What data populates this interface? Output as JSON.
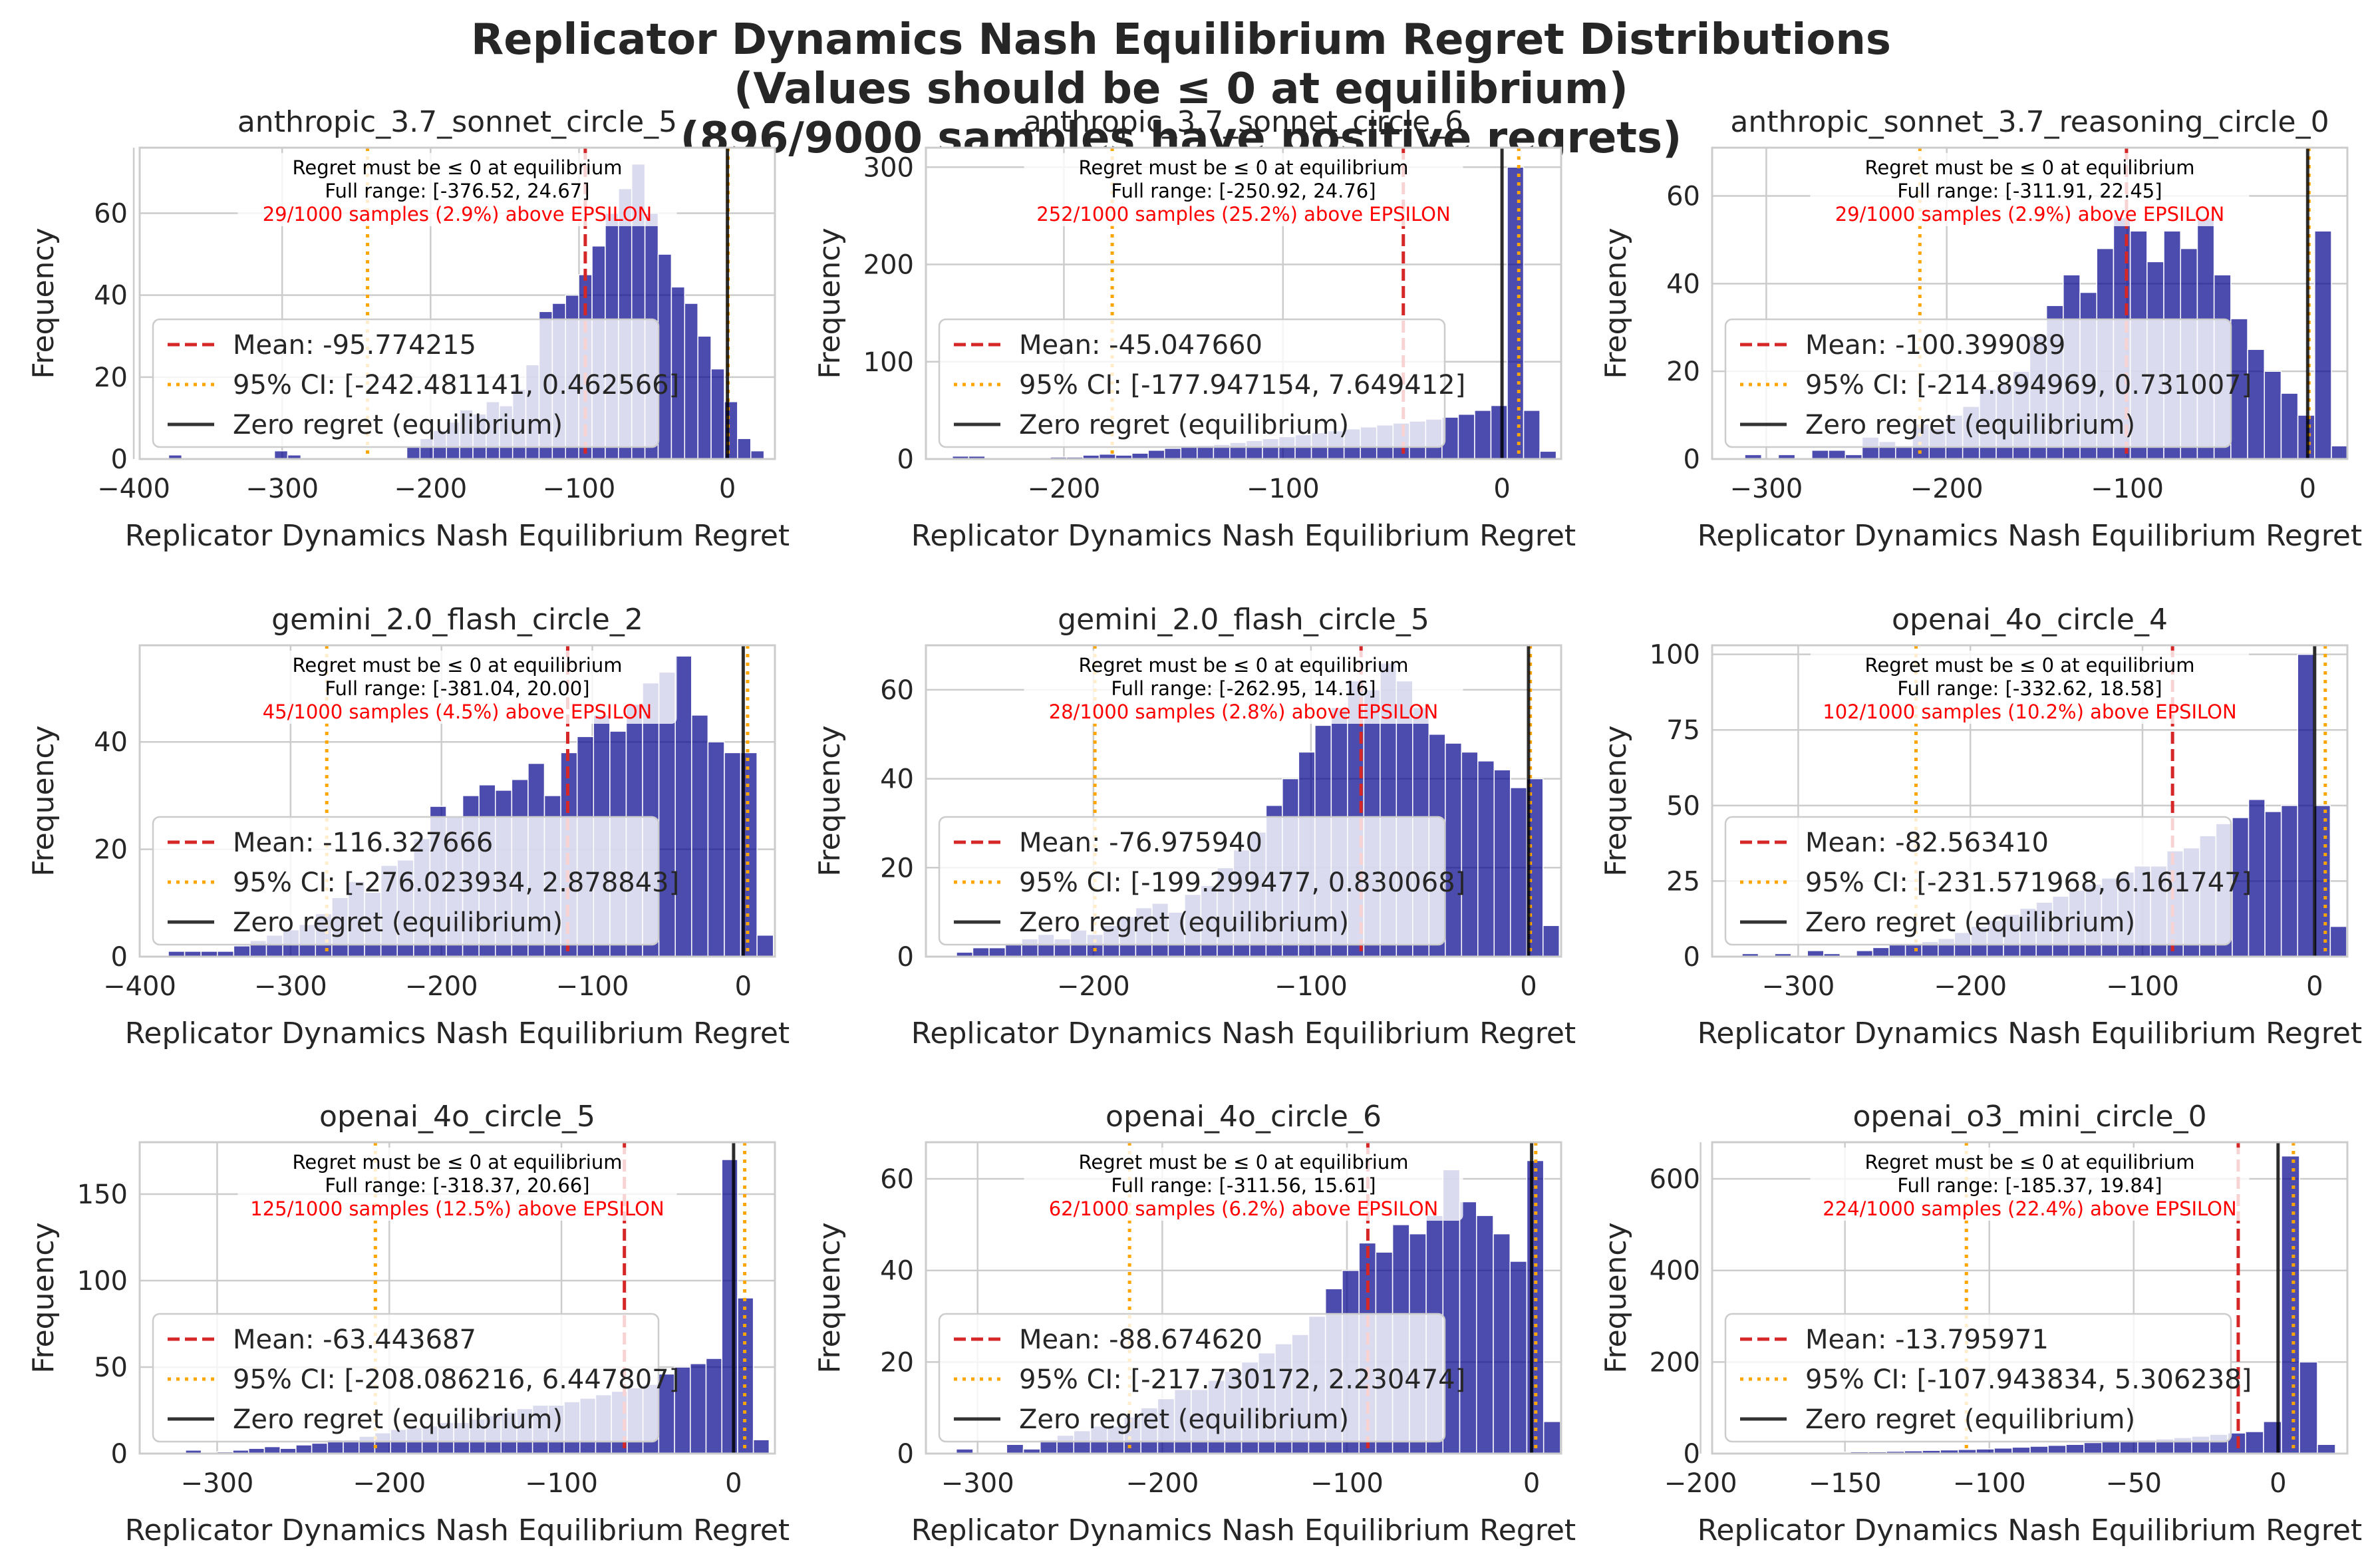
{
  "figure": {
    "title_lines": [
      "Replicator Dynamics Nash Equilibrium Regret Distributions",
      "(Values should be ≤ 0 at equilibrium)",
      "(896/9000 samples have positive regrets)"
    ]
  },
  "colors": {
    "bars": "#00008b",
    "mean_line": "#d62728",
    "ci_line": "#ffa500",
    "zero_line": "#000000",
    "epsilon_text": "#ff0000",
    "grid": "#cccccc"
  },
  "chart_data": [
    {
      "type": "bar",
      "title": "anthropic_3.7_sonnet_circle_5",
      "xlabel": "Replicator Dynamics Nash Equilibrium Regret",
      "ylabel": "Frequency",
      "xlim": [
        -396,
        32
      ],
      "ylim": [
        0,
        76
      ],
      "xticks": [
        -400,
        -300,
        -200,
        -100,
        0
      ],
      "yticks": [
        0,
        20,
        40,
        60
      ],
      "bin_range": [
        -376.52,
        24.67
      ],
      "counts": [
        1,
        0,
        0,
        0,
        0,
        0,
        0,
        0,
        2,
        1,
        0,
        0,
        0,
        0,
        0,
        0,
        0,
        0,
        3,
        5,
        7,
        9,
        12,
        11,
        14,
        13,
        17,
        23,
        36,
        38,
        40,
        45,
        52,
        60,
        66,
        72,
        60,
        50,
        42,
        38,
        30,
        22,
        14,
        5,
        2
      ],
      "mean": -95.774215,
      "ci": [
        -242.481141,
        0.462566
      ],
      "annotations": [
        "Regret must be ≤ 0 at equilibrium",
        "Full range: [-376.52, 24.67]",
        "29/1000 samples (2.9%) above EPSILON"
      ],
      "legend": [
        "Mean: -95.774215",
        "95% CI: [-242.481141, 0.462566]",
        "Zero regret (equilibrium)"
      ]
    },
    {
      "type": "bar",
      "title": "anthropic_3.7_sonnet_circle_6",
      "xlabel": "Replicator Dynamics Nash Equilibrium Regret",
      "ylabel": "Frequency",
      "xlim": [
        -263,
        27
      ],
      "ylim": [
        0,
        320
      ],
      "xticks": [
        -200,
        -100,
        0
      ],
      "yticks": [
        0,
        100,
        200,
        300
      ],
      "bin_range": [
        -250.92,
        24.76
      ],
      "counts": [
        3,
        3,
        0,
        0,
        1,
        0,
        2,
        2,
        4,
        5,
        4,
        6,
        9,
        11,
        13,
        14,
        15,
        17,
        19,
        21,
        23,
        25,
        27,
        29,
        31,
        33,
        35,
        37,
        39,
        41,
        43,
        46,
        50,
        55,
        300,
        50,
        8
      ],
      "mean": -45.04766,
      "ci": [
        -177.947154,
        7.649412
      ],
      "annotations": [
        "Regret must be ≤ 0 at equilibrium",
        "Full range: [-250.92, 24.76]",
        "252/1000 samples (25.2%) above EPSILON"
      ],
      "legend": [
        "Mean: -45.047660",
        "95% CI: [-177.947154, 7.649412]",
        "Zero regret (equilibrium)"
      ]
    },
    {
      "type": "bar",
      "title": "anthropic_sonnet_3.7_reasoning_circle_0",
      "xlabel": "Replicator Dynamics Nash Equilibrium Regret",
      "ylabel": "Frequency",
      "xlim": [
        -330,
        22
      ],
      "ylim": [
        0,
        71
      ],
      "xticks": [
        -300,
        -200,
        -100,
        0
      ],
      "yticks": [
        0,
        20,
        40,
        60
      ],
      "bin_range": [
        -311.91,
        22.45
      ],
      "counts": [
        1,
        0,
        1,
        0,
        2,
        2,
        1,
        5,
        4,
        3,
        8,
        7,
        10,
        12,
        16,
        17,
        20,
        28,
        35,
        42,
        38,
        48,
        55,
        52,
        45,
        52,
        48,
        55,
        42,
        32,
        25,
        20,
        15,
        10,
        52,
        3
      ],
      "mean": -100.399089,
      "ci": [
        -214.894969,
        0.731007
      ],
      "annotations": [
        "Regret must be ≤ 0 at equilibrium",
        "Full range: [-311.91, 22.45]",
        "29/1000 samples (2.9%) above EPSILON"
      ],
      "legend": [
        "Mean: -100.399089",
        "95% CI: [-214.894969, 0.731007]",
        "Zero regret (equilibrium)"
      ]
    },
    {
      "type": "bar",
      "title": "gemini_2.0_flash_circle_2",
      "xlabel": "Replicator Dynamics Nash Equilibrium Regret",
      "ylabel": "Frequency",
      "xlim": [
        -400,
        21
      ],
      "ylim": [
        0,
        58
      ],
      "xticks": [
        -400,
        -300,
        -200,
        -100,
        0
      ],
      "yticks": [
        0,
        20,
        40
      ],
      "bin_range": [
        -381.04,
        20.0
      ],
      "counts": [
        1,
        1,
        1,
        1,
        2,
        3,
        4,
        5,
        6,
        8,
        11,
        14,
        12,
        17,
        18,
        22,
        28,
        26,
        30,
        32,
        31,
        33,
        36,
        30,
        38,
        41,
        45,
        42,
        47,
        51,
        53,
        56,
        45,
        40,
        38,
        38,
        4
      ],
      "mean": -116.327666,
      "ci": [
        -276.023934,
        2.878843
      ],
      "annotations": [
        "Regret must be ≤ 0 at equilibrium",
        "Full range: [-381.04, 20.00]",
        "45/1000 samples (4.5%) above EPSILON"
      ],
      "legend": [
        "Mean: -116.327666",
        "95% CI: [-276.023934, 2.878843]",
        "Zero regret (equilibrium)"
      ]
    },
    {
      "type": "bar",
      "title": "gemini_2.0_flash_circle_5",
      "xlabel": "Replicator Dynamics Nash Equilibrium Regret",
      "ylabel": "Frequency",
      "xlim": [
        -277,
        15
      ],
      "ylim": [
        0,
        70
      ],
      "xticks": [
        -200,
        -100,
        0
      ],
      "yticks": [
        0,
        20,
        40,
        60
      ],
      "bin_range": [
        -262.95,
        14.16
      ],
      "counts": [
        1,
        2,
        2,
        3,
        4,
        5,
        4,
        6,
        5,
        7,
        9,
        11,
        12,
        10,
        14,
        16,
        20,
        24,
        28,
        34,
        40,
        46,
        52,
        56,
        62,
        60,
        66,
        62,
        56,
        50,
        48,
        46,
        44,
        42,
        38,
        40,
        7
      ],
      "mean": -76.97594,
      "ci": [
        -199.299477,
        0.830068
      ],
      "annotations": [
        "Regret must be ≤ 0 at equilibrium",
        "Full range: [-262.95, 14.16]",
        "28/1000 samples (2.8%) above EPSILON"
      ],
      "legend": [
        "Mean: -76.975940",
        "95% CI: [-199.299477, 0.830068]",
        "Zero regret (equilibrium)"
      ]
    },
    {
      "type": "bar",
      "title": "openai_4o_circle_4",
      "xlabel": "Replicator Dynamics Nash Equilibrium Regret",
      "ylabel": "Frequency",
      "xlim": [
        -350,
        19
      ],
      "ylim": [
        0,
        103
      ],
      "xticks": [
        -300,
        -200,
        -100,
        0
      ],
      "yticks": [
        0,
        25,
        50,
        75,
        100
      ],
      "bin_range": [
        -332.62,
        18.58
      ],
      "counts": [
        1,
        0,
        1,
        0,
        2,
        1,
        0,
        2,
        3,
        4,
        4,
        5,
        6,
        8,
        10,
        12,
        14,
        16,
        18,
        20,
        22,
        24,
        26,
        28,
        30,
        30,
        35,
        36,
        40,
        44,
        46,
        52,
        48,
        50,
        100,
        50,
        10
      ],
      "mean": -82.56341,
      "ci": [
        -231.571968,
        6.161747
      ],
      "annotations": [
        "Regret must be ≤ 0 at equilibrium",
        "Full range: [-332.62, 18.58]",
        "102/1000 samples (10.2%) above EPSILON"
      ],
      "legend": [
        "Mean: -82.563410",
        "95% CI: [-231.571968, 6.161747]",
        "Zero regret (equilibrium)"
      ]
    },
    {
      "type": "bar",
      "title": "openai_4o_circle_5",
      "xlabel": "Replicator Dynamics Nash Equilibrium Regret",
      "ylabel": "Frequency",
      "xlim": [
        -345,
        24
      ],
      "ylim": [
        0,
        180
      ],
      "xticks": [
        -300,
        -200,
        -100,
        0
      ],
      "yticks": [
        0,
        50,
        100,
        150
      ],
      "bin_range": [
        -318.37,
        20.66
      ],
      "counts": [
        2,
        0,
        1,
        2,
        3,
        4,
        3,
        5,
        6,
        8,
        8,
        10,
        12,
        14,
        15,
        16,
        18,
        18,
        20,
        22,
        24,
        26,
        28,
        28,
        30,
        32,
        34,
        36,
        38,
        40,
        46,
        50,
        52,
        55,
        170,
        90,
        8
      ],
      "mean": -63.443687,
      "ci": [
        -208.086216,
        6.447807
      ],
      "annotations": [
        "Regret must be ≤ 0 at equilibrium",
        "Full range: [-318.37, 20.66]",
        "125/1000 samples (12.5%) above EPSILON"
      ],
      "legend": [
        "Mean: -63.443687",
        "95% CI: [-208.086216, 6.447807]",
        "Zero regret (equilibrium)"
      ]
    },
    {
      "type": "bar",
      "title": "openai_4o_circle_6",
      "xlabel": "Replicator Dynamics Nash Equilibrium Regret",
      "ylabel": "Frequency",
      "xlim": [
        -328,
        16
      ],
      "ylim": [
        0,
        68
      ],
      "xticks": [
        -300,
        -200,
        -100,
        0
      ],
      "yticks": [
        0,
        20,
        40,
        60
      ],
      "bin_range": [
        -311.56,
        15.61
      ],
      "counts": [
        1,
        0,
        0,
        2,
        1,
        3,
        4,
        5,
        6,
        6,
        8,
        10,
        12,
        14,
        14,
        16,
        18,
        20,
        22,
        24,
        26,
        30,
        36,
        40,
        46,
        44,
        50,
        48,
        52,
        62,
        55,
        52,
        48,
        42,
        64,
        7
      ],
      "mean": -88.67462,
      "ci": [
        -217.730172,
        2.230474
      ],
      "annotations": [
        "Regret must be ≤ 0 at equilibrium",
        "Full range: [-311.56, 15.61]",
        "62/1000 samples (6.2%) above EPSILON"
      ],
      "legend": [
        "Mean: -88.674620",
        "95% CI: [-217.730172, 2.230474]",
        "Zero regret (equilibrium)"
      ]
    },
    {
      "type": "bar",
      "title": "openai_o3_mini_circle_0",
      "xlabel": "Replicator Dynamics Nash Equilibrium Regret",
      "ylabel": "Frequency",
      "xlim": [
        -196,
        24
      ],
      "ylim": [
        0,
        680
      ],
      "xticks": [
        -200,
        -150,
        -100,
        -50,
        0
      ],
      "yticks": [
        0,
        200,
        400,
        600
      ],
      "bin_range": [
        -185.37,
        19.84
      ],
      "counts": [
        2,
        1,
        2,
        2,
        3,
        3,
        4,
        4,
        5,
        6,
        7,
        8,
        9,
        10,
        12,
        14,
        16,
        18,
        20,
        24,
        26,
        28,
        30,
        32,
        35,
        38,
        42,
        45,
        48,
        70,
        650,
        200,
        20
      ],
      "mean": -13.795971,
      "ci": [
        -107.943834,
        5.306238
      ],
      "annotations": [
        "Regret must be ≤ 0 at equilibrium",
        "Full range: [-185.37, 19.84]",
        "224/1000 samples (22.4%) above EPSILON"
      ],
      "legend": [
        "Mean: -13.795971",
        "95% CI: [-107.943834, 5.306238]",
        "Zero regret (equilibrium)"
      ]
    }
  ]
}
